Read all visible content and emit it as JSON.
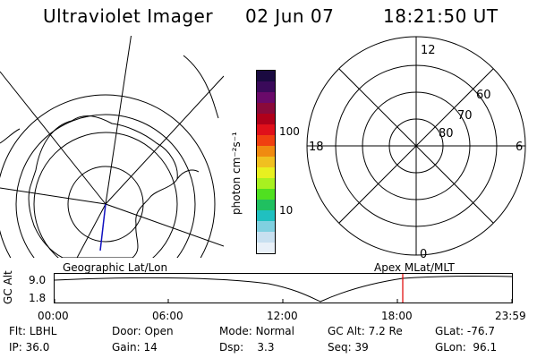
{
  "header": {
    "instrument": "Ultraviolet Imager",
    "date": "02 Jun 07",
    "time": "18:21:50 UT"
  },
  "colorbar": {
    "unit_label": "photon cm⁻²s⁻¹",
    "tick_100": "100",
    "tick_10": "10",
    "colors": [
      "#1a0a40",
      "#3a0a5a",
      "#6a0a6a",
      "#8a0a3a",
      "#b0001a",
      "#e0101a",
      "#f04010",
      "#f08a10",
      "#f0c020",
      "#e8f020",
      "#a8f020",
      "#50e020",
      "#20c060",
      "#20c0c0",
      "#80d0e0",
      "#c8e0f0",
      "#e8f0f8"
    ]
  },
  "polar_grid": {
    "label_12": "12",
    "label_18": "18",
    "label_6": "6",
    "label_0": "0",
    "label_60": "60",
    "label_70": "70",
    "label_80": "80"
  },
  "timeline": {
    "left_title": "Geographic Lat/Lon",
    "right_title": "Apex MLat/MLT",
    "ylabel": "GC Alt",
    "y_high": "9.0",
    "y_low": "1.8",
    "x_ticks": [
      "00:00",
      "06:00",
      "12:00",
      "18:00",
      "23:59"
    ],
    "marker_color": "#e00000"
  },
  "status": {
    "flt_label": "Flt:",
    "flt": "LBHL",
    "door_label": "Door:",
    "door": "Open",
    "mode_label": "Mode:",
    "mode": "Normal",
    "gcalt_label": "GC Alt:",
    "gcalt": "7.2 Re",
    "glat_label": "GLat:",
    "glat": "-76.7",
    "ip_label": "IP:",
    "ip": "36.0",
    "gain_label": "Gain:",
    "gain": "14",
    "dsp_label": "Dsp:",
    "dsp": "3.3",
    "seq_label": "Seq:",
    "seq": "39",
    "glon_label": "GLon:",
    "glon": "96.1"
  }
}
